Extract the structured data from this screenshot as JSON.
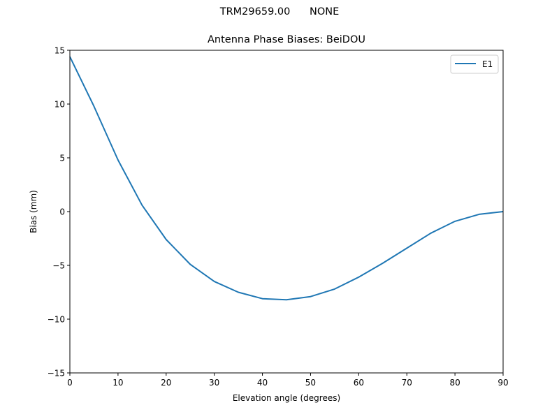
{
  "figure": {
    "suptitle": "TRM29659.00      NONE",
    "title": "Antenna Phase Biases: BeiDOU"
  },
  "chart_data": {
    "type": "line",
    "title": "Antenna Phase Biases: BeiDOU",
    "suptitle": "TRM29659.00      NONE",
    "xlabel": "Elevation angle (degrees)",
    "ylabel": "Bias (mm)",
    "xlim": [
      0,
      90
    ],
    "ylim": [
      -15,
      15
    ],
    "xticks": [
      0,
      10,
      20,
      30,
      40,
      50,
      60,
      70,
      80,
      90
    ],
    "yticks": [
      -15,
      -10,
      -5,
      0,
      5,
      10,
      15
    ],
    "ytick_labels": [
      "−15",
      "−10",
      "−5",
      "0",
      "5",
      "10",
      "15"
    ],
    "grid": false,
    "legend_position": "upper right",
    "x": [
      0,
      5,
      10,
      15,
      20,
      25,
      30,
      35,
      40,
      45,
      50,
      55,
      60,
      65,
      70,
      75,
      80,
      85,
      90
    ],
    "series": [
      {
        "name": "E1",
        "color": "#1f77b4",
        "values": [
          14.4,
          9.8,
          4.8,
          0.6,
          -2.6,
          -4.9,
          -6.5,
          -7.5,
          -8.1,
          -8.2,
          -7.9,
          -7.2,
          -6.1,
          -4.8,
          -3.4,
          -2.0,
          -0.9,
          -0.25,
          0.0
        ]
      }
    ]
  }
}
